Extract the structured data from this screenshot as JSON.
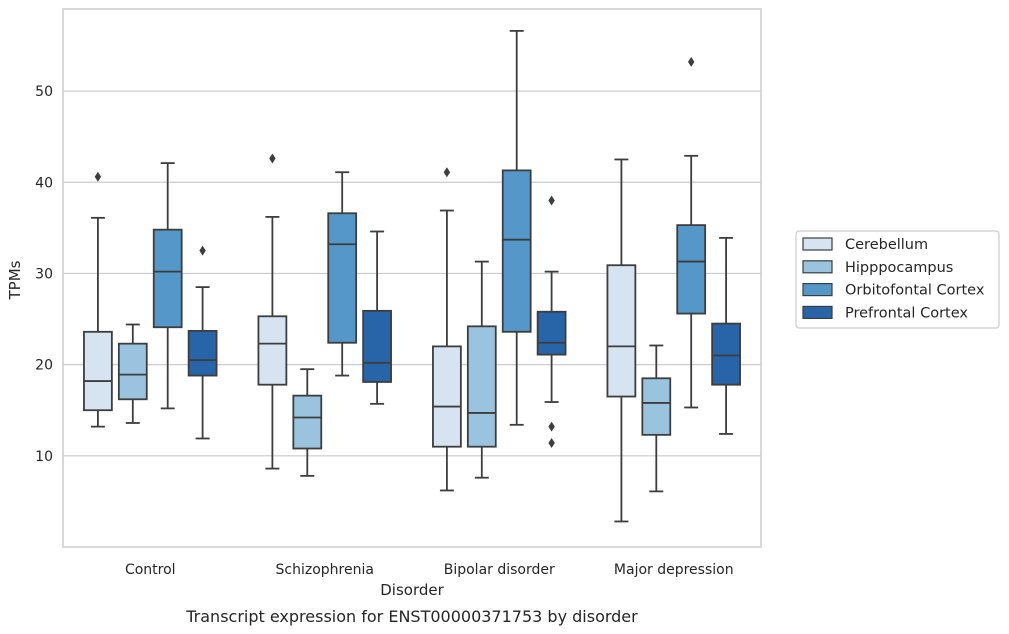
{
  "caption": "Transcript expression for ENST00000371753 by disorder",
  "chart_data": {
    "type": "box",
    "xlabel": "Disorder",
    "ylabel": "TPMs",
    "categories": [
      "Control",
      "Schizophrenia",
      "Bipolar disorder",
      "Major depression"
    ],
    "ylim": [
      0,
      59
    ],
    "yticks": [
      10,
      20,
      30,
      40,
      50
    ],
    "ytick_labels": [
      "10",
      "20",
      "30",
      "40",
      "50"
    ],
    "grid": "horizontal",
    "legend_position": "right",
    "series": [
      {
        "name": "Cerebellum",
        "color": "#d6e4f2",
        "boxes": [
          {
            "whisker_low": 13.2,
            "q1": 15.0,
            "median": 18.2,
            "q3": 23.6,
            "whisker_high": 36.1,
            "outliers": [
              40.6
            ]
          },
          {
            "whisker_low": 8.6,
            "q1": 17.8,
            "median": 22.3,
            "q3": 25.3,
            "whisker_high": 36.2,
            "outliers": [
              42.6
            ]
          },
          {
            "whisker_low": 6.2,
            "q1": 11.0,
            "median": 15.4,
            "q3": 22.0,
            "whisker_high": 36.9,
            "outliers": [
              41.1
            ]
          },
          {
            "whisker_low": 2.8,
            "q1": 16.5,
            "median": 22.0,
            "q3": 30.9,
            "whisker_high": 42.5,
            "outliers": []
          }
        ]
      },
      {
        "name": "Hipppocampus",
        "color": "#9ac3df",
        "boxes": [
          {
            "whisker_low": 13.6,
            "q1": 16.2,
            "median": 18.9,
            "q3": 22.3,
            "whisker_high": 24.4,
            "outliers": []
          },
          {
            "whisker_low": 7.8,
            "q1": 10.8,
            "median": 14.2,
            "q3": 16.6,
            "whisker_high": 19.5,
            "outliers": []
          },
          {
            "whisker_low": 7.6,
            "q1": 11.0,
            "median": 14.7,
            "q3": 24.2,
            "whisker_high": 31.3,
            "outliers": []
          },
          {
            "whisker_low": 6.1,
            "q1": 12.3,
            "median": 15.8,
            "q3": 18.5,
            "whisker_high": 22.1,
            "outliers": []
          }
        ]
      },
      {
        "name": "Orbitofontal Cortex",
        "color": "#5597c9",
        "boxes": [
          {
            "whisker_low": 15.2,
            "q1": 24.1,
            "median": 30.2,
            "q3": 34.8,
            "whisker_high": 42.1,
            "outliers": []
          },
          {
            "whisker_low": 18.8,
            "q1": 22.4,
            "median": 33.2,
            "q3": 36.6,
            "whisker_high": 41.1,
            "outliers": []
          },
          {
            "whisker_low": 13.4,
            "q1": 23.6,
            "median": 33.7,
            "q3": 41.3,
            "whisker_high": 56.6,
            "outliers": []
          },
          {
            "whisker_low": 15.3,
            "q1": 25.6,
            "median": 31.3,
            "q3": 35.3,
            "whisker_high": 42.9,
            "outliers": [
              53.2
            ]
          }
        ]
      },
      {
        "name": "Prefrontal Cortex",
        "color": "#2865a8",
        "boxes": [
          {
            "whisker_low": 11.9,
            "q1": 18.8,
            "median": 20.5,
            "q3": 23.7,
            "whisker_high": 28.5,
            "outliers": [
              32.5
            ]
          },
          {
            "whisker_low": 15.7,
            "q1": 18.1,
            "median": 20.2,
            "q3": 25.9,
            "whisker_high": 34.6,
            "outliers": []
          },
          {
            "whisker_low": 15.9,
            "q1": 21.1,
            "median": 22.4,
            "q3": 25.8,
            "whisker_high": 30.2,
            "outliers": [
              38.0,
              13.2,
              11.4
            ]
          },
          {
            "whisker_low": 12.4,
            "q1": 17.8,
            "median": 21.0,
            "q3": 24.5,
            "whisker_high": 33.9,
            "outliers": []
          }
        ]
      }
    ]
  }
}
